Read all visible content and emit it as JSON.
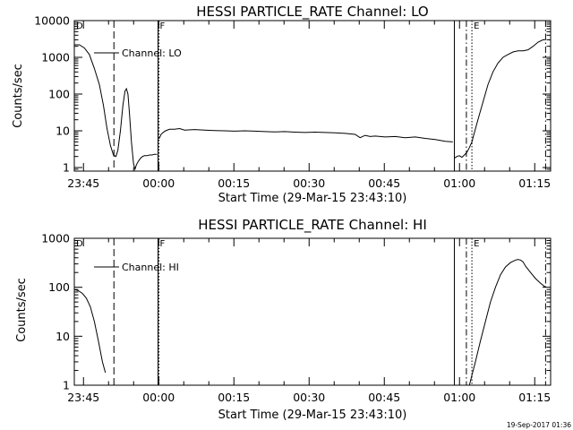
{
  "footer": {
    "timestamp": "19-Sep-2017 01:36"
  },
  "chart_data": [
    {
      "type": "line",
      "title": "HESSI PARTICLE_RATE Channel: LO",
      "xlabel": "Start Time (29-Mar-15 23:43:10)",
      "ylabel": "Counts/sec",
      "yscale": "log",
      "ylim": [
        0.8,
        10000
      ],
      "xlim_minutes": [
        0,
        95
      ],
      "x_ticks": [
        {
          "t": 1.83,
          "label": "23:45"
        },
        {
          "t": 16.83,
          "label": "00:00"
        },
        {
          "t": 31.83,
          "label": "00:15"
        },
        {
          "t": 46.83,
          "label": "00:30"
        },
        {
          "t": 61.83,
          "label": "00:45"
        },
        {
          "t": 76.83,
          "label": "01:00"
        },
        {
          "t": 91.83,
          "label": "01:15"
        }
      ],
      "y_ticks": [
        {
          "v": 1,
          "label": "1"
        },
        {
          "v": 10,
          "label": "10"
        },
        {
          "v": 100,
          "label": "100"
        },
        {
          "v": 1000,
          "label": "1000"
        },
        {
          "v": 10000,
          "label": "10000"
        }
      ],
      "legend": "Channel: LO",
      "legend_position": "top-left",
      "markers": [
        {
          "t": 0,
          "style": "solid",
          "label": "D"
        },
        {
          "t": 7.9,
          "style": "dashed",
          "label": ""
        },
        {
          "t": 16.7,
          "style": "solid",
          "label": "F"
        },
        {
          "t": 16.9,
          "style": "dotted",
          "label": ""
        },
        {
          "t": 75.8,
          "style": "solid",
          "label": ""
        },
        {
          "t": 78.2,
          "style": "dashdot",
          "label": ""
        },
        {
          "t": 79.3,
          "style": "dotted",
          "label": "E"
        },
        {
          "t": 94.0,
          "style": "dashdot",
          "label": ""
        }
      ],
      "series": [
        {
          "x": [
            0,
            1,
            2,
            3,
            4,
            5,
            5.8,
            6.5,
            7.2,
            7.8,
            8.3,
            8.7,
            9.2,
            9.7,
            10.1,
            10.4,
            10.7,
            11.0,
            11.4,
            11.8,
            12.1,
            12.4,
            12.8,
            13.2,
            13.6,
            14.0,
            14.5,
            15.0,
            15.5,
            16.0,
            16.5
          ],
          "values": [
            2200,
            2200,
            1800,
            1200,
            500,
            180,
            50,
            12,
            4,
            2.2,
            2,
            3,
            10,
            50,
            120,
            140,
            100,
            30,
            5,
            1.3,
            0.9,
            1.2,
            1.5,
            1.8,
            2,
            2.1,
            2.1,
            2.2,
            2.2,
            2.3,
            2.3
          ]
        },
        {
          "x": [
            16.9,
            17.3,
            17.7,
            18.2,
            19,
            20,
            21,
            22,
            24,
            26,
            28,
            30,
            32,
            34,
            36,
            38,
            40,
            42,
            44,
            46,
            48,
            50,
            52,
            54,
            56,
            57,
            58,
            59,
            60,
            62,
            64,
            66,
            68,
            70,
            72,
            74,
            75.5
          ],
          "values": [
            6,
            8,
            9,
            10,
            11,
            11,
            11.5,
            10.5,
            10.8,
            10.5,
            10.2,
            10,
            9.8,
            10,
            9.8,
            9.5,
            9.3,
            9.5,
            9.2,
            9.0,
            9.2,
            9.0,
            8.8,
            8.5,
            8.0,
            6.5,
            7.5,
            7.0,
            7.2,
            6.8,
            7.0,
            6.5,
            6.8,
            6.2,
            5.8,
            5.2,
            5.0
          ]
        },
        {
          "x": [
            75.8,
            76.3,
            76.8,
            77.3,
            77.8,
            78.3,
            78.8,
            79.3,
            79.8,
            80.5,
            81.5,
            82.5,
            83.5,
            84.5,
            85.5,
            86.5,
            87.5,
            88.5,
            89.5,
            90.5,
            91.5,
            92.5,
            93.5,
            94.0
          ],
          "values": [
            1.8,
            2.0,
            2.1,
            1.9,
            2.2,
            2.6,
            3.5,
            5,
            9,
            20,
            60,
            180,
            400,
            700,
            1000,
            1200,
            1400,
            1500,
            1500,
            1600,
            2000,
            2600,
            3000,
            3000
          ]
        }
      ]
    },
    {
      "type": "line",
      "title": "HESSI PARTICLE_RATE Channel: HI",
      "xlabel": "Start Time (29-Mar-15 23:43:10)",
      "ylabel": "Counts/sec",
      "yscale": "log",
      "ylim": [
        1,
        1000
      ],
      "xlim_minutes": [
        0,
        95
      ],
      "x_ticks": [
        {
          "t": 1.83,
          "label": "23:45"
        },
        {
          "t": 16.83,
          "label": "00:00"
        },
        {
          "t": 31.83,
          "label": "00:15"
        },
        {
          "t": 46.83,
          "label": "00:30"
        },
        {
          "t": 61.83,
          "label": "00:45"
        },
        {
          "t": 76.83,
          "label": "01:00"
        },
        {
          "t": 91.83,
          "label": "01:15"
        }
      ],
      "y_ticks": [
        {
          "v": 1,
          "label": "1"
        },
        {
          "v": 10,
          "label": "10"
        },
        {
          "v": 100,
          "label": "100"
        },
        {
          "v": 1000,
          "label": "1000"
        }
      ],
      "legend": "Channel: HI",
      "legend_position": "top-left",
      "markers": [
        {
          "t": 0,
          "style": "solid",
          "label": "D"
        },
        {
          "t": 7.9,
          "style": "dashed",
          "label": ""
        },
        {
          "t": 16.7,
          "style": "solid",
          "label": "F"
        },
        {
          "t": 16.9,
          "style": "dotted",
          "label": ""
        },
        {
          "t": 75.8,
          "style": "solid",
          "label": ""
        },
        {
          "t": 78.2,
          "style": "dashdot",
          "label": ""
        },
        {
          "t": 79.3,
          "style": "dotted",
          "label": "E"
        },
        {
          "t": 94.0,
          "style": "dashdot",
          "label": ""
        }
      ],
      "series": [
        {
          "x": [
            0,
            0.8,
            1.6,
            2.4,
            3.2,
            4.0,
            4.8,
            5.6,
            6.2
          ],
          "values": [
            90,
            85,
            75,
            60,
            40,
            20,
            8,
            3,
            1.8
          ]
        },
        {
          "x": [
            78.8,
            79.3,
            80,
            81,
            82,
            83,
            84,
            85,
            86,
            87,
            88,
            88.5,
            89,
            89.5,
            90,
            91,
            92,
            93,
            94.0
          ],
          "values": [
            1.0,
            1.6,
            3,
            8,
            20,
            50,
            100,
            180,
            260,
            320,
            360,
            370,
            360,
            330,
            270,
            200,
            150,
            120,
            100
          ]
        }
      ]
    }
  ]
}
